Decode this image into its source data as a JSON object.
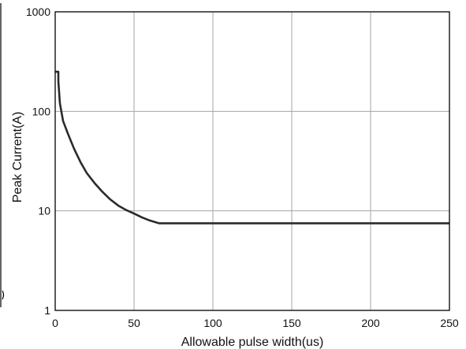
{
  "chart_data": {
    "type": "line",
    "title": "",
    "xlabel": "Allowable pulse width(us)",
    "ylabel": "Peak Current(A)",
    "xlim": [
      0,
      250
    ],
    "ylim": [
      1,
      1000
    ],
    "x_scale": "linear",
    "y_scale": "log",
    "x_ticks": [
      0,
      50,
      100,
      150,
      200,
      250
    ],
    "y_ticks": [
      1,
      10,
      100,
      1000
    ],
    "x_tick_labels": [
      "0",
      "50",
      "100",
      "150",
      "200",
      "250"
    ],
    "y_tick_labels": [
      "1",
      "10",
      "100",
      "1000"
    ],
    "grid": true,
    "legend": "none",
    "series": [
      {
        "color": "#2b2b2b",
        "points": [
          {
            "x": 0.0,
            "y": 250
          },
          {
            "x": 2.0,
            "y": 250
          },
          {
            "x": 2.0,
            "y": 200
          },
          {
            "x": 3.0,
            "y": 120
          },
          {
            "x": 5.0,
            "y": 80
          },
          {
            "x": 8.0,
            "y": 60
          },
          {
            "x": 12.0,
            "y": 42
          },
          {
            "x": 16.0,
            "y": 31
          },
          {
            "x": 20.0,
            "y": 24
          },
          {
            "x": 25.0,
            "y": 19
          },
          {
            "x": 30.0,
            "y": 15.5
          },
          {
            "x": 35.0,
            "y": 13
          },
          {
            "x": 40.0,
            "y": 11.3
          },
          {
            "x": 45.0,
            "y": 10.2
          },
          {
            "x": 50.0,
            "y": 9.4
          },
          {
            "x": 55.0,
            "y": 8.6
          },
          {
            "x": 60.0,
            "y": 8.0
          },
          {
            "x": 66.0,
            "y": 7.5
          },
          {
            "x": 100.0,
            "y": 7.5
          },
          {
            "x": 150.0,
            "y": 7.5
          },
          {
            "x": 200.0,
            "y": 7.5
          },
          {
            "x": 250.0,
            "y": 7.5
          }
        ]
      }
    ]
  }
}
